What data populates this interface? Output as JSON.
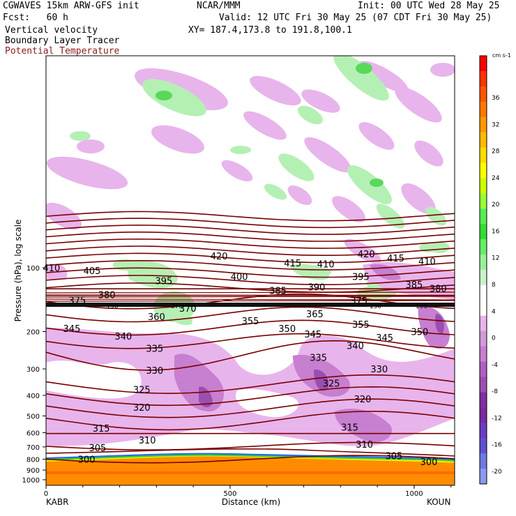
{
  "header": {
    "model_title": "CGWAVES 15km ARW-GFS init",
    "org": "NCAR/MMM",
    "init": "Init: 00 UTC Wed 28 May 25",
    "forecast": "Fcst:   60 h",
    "valid": "Valid: 12 UTC Fri 30 May 25 (07 CDT Fri 30 May 25)",
    "field1": "Vertical velocity",
    "field2": "Boundary Layer Tracer",
    "field3": "Potential Temperature",
    "xy": "XY= 187.4,173.8 to 191.8,100.1"
  },
  "colors": {
    "theta_line": "#7a0000",
    "pbl_orange": "#ff8c00",
    "light_pink": "#e8b4ec",
    "mid_purple": "#c77fd0",
    "dark_purple": "#9a4fb0",
    "light_green": "#b4f0b4",
    "mid_green": "#5ad85a",
    "title_red": "#8b1a1a"
  },
  "chart_data": {
    "type": "cross-section",
    "ylabel": "Pressure (hPa), log scale",
    "xlabel": "Distance (km)",
    "x_ticks": [
      0,
      500,
      1000
    ],
    "x_range": [
      0,
      1110
    ],
    "y_ticks": [
      100,
      200,
      300,
      400,
      500,
      600,
      700,
      800,
      900,
      1000
    ],
    "y_range_hpa": [
      1000,
      10
    ],
    "y_scale": "log",
    "left_station": "KABR",
    "right_station": "KOUN",
    "colorbar": {
      "unit": "cm s-1",
      "labels": [
        36,
        32,
        28,
        24,
        20,
        16,
        12,
        8,
        4,
        0,
        -4,
        -8,
        -12,
        -16,
        -20
      ],
      "colors": [
        "#ff0000",
        "#ff3300",
        "#ff5500",
        "#ff7700",
        "#ff9900",
        "#ffbb00",
        "#ffdd00",
        "#ffff00",
        "#ccff00",
        "#99ff33",
        "#55ee55",
        "#33dd33",
        "#66ee66",
        "#99f099",
        "#c8f5c8",
        "#ffffff",
        "#ffffff",
        "#e8b4ec",
        "#d49ad8",
        "#c77fd0",
        "#b060c0",
        "#9a4fb0",
        "#8030a0",
        "#7a2aa0",
        "#6a3cc0",
        "#6050d0",
        "#6b7be0",
        "#8a9af0"
      ]
    },
    "theta_labels": [
      {
        "text": "410",
        "x": 15,
        "p": 100
      },
      {
        "text": "405",
        "x": 125,
        "p": 103
      },
      {
        "text": "420",
        "x": 470,
        "p": 88
      },
      {
        "text": "415",
        "x": 670,
        "p": 95
      },
      {
        "text": "410",
        "x": 760,
        "p": 96
      },
      {
        "text": "420",
        "x": 870,
        "p": 86
      },
      {
        "text": "415",
        "x": 950,
        "p": 90
      },
      {
        "text": "410",
        "x": 1035,
        "p": 93
      },
      {
        "text": "400",
        "x": 525,
        "p": 110
      },
      {
        "text": "395",
        "x": 320,
        "p": 115
      },
      {
        "text": "395",
        "x": 855,
        "p": 110
      },
      {
        "text": "385",
        "x": 1000,
        "p": 120
      },
      {
        "text": "380",
        "x": 1065,
        "p": 125
      },
      {
        "text": "390",
        "x": 735,
        "p": 123
      },
      {
        "text": "385",
        "x": 630,
        "p": 128
      },
      {
        "text": "380",
        "x": 165,
        "p": 134
      },
      {
        "text": "375",
        "x": 85,
        "p": 142
      },
      {
        "text": "375",
        "x": 850,
        "p": 143
      },
      {
        "text": "370",
        "x": 385,
        "p": 155
      },
      {
        "text": "365",
        "x": 730,
        "p": 165
      },
      {
        "text": "360",
        "x": 300,
        "p": 170
      },
      {
        "text": "355",
        "x": 555,
        "p": 178
      },
      {
        "text": "355",
        "x": 855,
        "p": 185
      },
      {
        "text": "350",
        "x": 655,
        "p": 193
      },
      {
        "text": "350",
        "x": 1015,
        "p": 200
      },
      {
        "text": "345",
        "x": 70,
        "p": 193
      },
      {
        "text": "345",
        "x": 725,
        "p": 205
      },
      {
        "text": "345",
        "x": 920,
        "p": 213
      },
      {
        "text": "340",
        "x": 210,
        "p": 210
      },
      {
        "text": "340",
        "x": 840,
        "p": 233
      },
      {
        "text": "335",
        "x": 295,
        "p": 240
      },
      {
        "text": "335",
        "x": 740,
        "p": 265
      },
      {
        "text": "330",
        "x": 295,
        "p": 305
      },
      {
        "text": "330",
        "x": 905,
        "p": 300
      },
      {
        "text": "325",
        "x": 260,
        "p": 375
      },
      {
        "text": "325",
        "x": 775,
        "p": 350
      },
      {
        "text": "320",
        "x": 260,
        "p": 455
      },
      {
        "text": "320",
        "x": 860,
        "p": 415
      },
      {
        "text": "315",
        "x": 150,
        "p": 570
      },
      {
        "text": "315",
        "x": 825,
        "p": 565
      },
      {
        "text": "310",
        "x": 275,
        "p": 650
      },
      {
        "text": "310",
        "x": 865,
        "p": 680
      },
      {
        "text": "305",
        "x": 140,
        "p": 705
      },
      {
        "text": "305",
        "x": 945,
        "p": 770
      },
      {
        "text": "300",
        "x": 110,
        "p": 800
      },
      {
        "text": "300",
        "x": 1040,
        "p": 820
      }
    ],
    "tropopause_labels": [
      "150",
      "370",
      "150",
      "160"
    ]
  }
}
